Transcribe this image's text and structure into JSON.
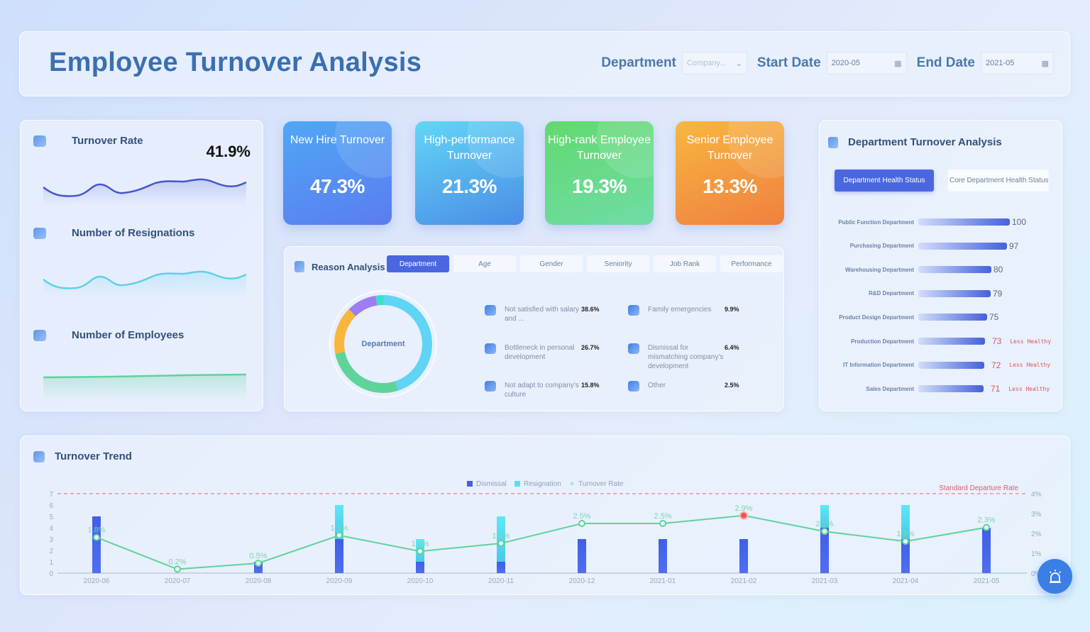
{
  "header": {
    "title": "Employee Turnover Analysis",
    "filters": {
      "department_label": "Department",
      "department_placeholder": "Company...",
      "start_label": "Start Date",
      "start_value": "2020-05",
      "end_label": "End Date",
      "end_value": "2021-05"
    }
  },
  "left_panel": {
    "turnover_rate": {
      "label": "Turnover Rate",
      "value": "41.9%"
    },
    "resignations": {
      "label": "Number of Resignations"
    },
    "employees": {
      "label": "Number of Employees"
    }
  },
  "kpis": [
    {
      "label": "New Hire Turnover",
      "value": "47.3%",
      "from": "#4fa8f5",
      "to": "#5b7cf0"
    },
    {
      "label": "High-performance Turnover",
      "value": "21.3%",
      "from": "#62d6f6",
      "to": "#4a8de6"
    },
    {
      "label": "High-rank Employee Turnover",
      "value": "19.3%",
      "from": "#62d96e",
      "to": "#6fdca6"
    },
    {
      "label": "Senior Employee Turnover",
      "value": "13.3%",
      "from": "#f7b73f",
      "to": "#f08040"
    }
  ],
  "reason": {
    "title": "Reason Analysis",
    "tabs": [
      "Department",
      "Age",
      "Gender",
      "Seniority",
      "Job Rank",
      "Performance"
    ],
    "active_tab": "Department",
    "donut_center": "Department",
    "items": [
      {
        "text": "Not satisfied with salary and ...",
        "value": "38.6%"
      },
      {
        "text": "Family emergencies",
        "value": "9.9%"
      },
      {
        "text": "Bottleneck in personal development",
        "value": "26.7%"
      },
      {
        "text": "Dismissal for mismatching company's development",
        "value": "6.4%"
      },
      {
        "text": "Not adapt to company's culture",
        "value": "15.8%"
      },
      {
        "text": "Other",
        "value": "2.5%"
      }
    ]
  },
  "department_analysis": {
    "title": "Department Turnover Analysis",
    "tabs": [
      "Department Health Status",
      "Core Department Health Status"
    ],
    "rows": [
      {
        "name": "Public Function Department",
        "value": 100,
        "warning": ""
      },
      {
        "name": "Purchasing Department",
        "value": 97,
        "warning": ""
      },
      {
        "name": "Warehousing Department",
        "value": 80,
        "warning": ""
      },
      {
        "name": "R&D Department",
        "value": 79,
        "warning": ""
      },
      {
        "name": "Product Design Department",
        "value": 75,
        "warning": ""
      },
      {
        "name": "Production Department",
        "value": 73,
        "warning": "Less Healthy"
      },
      {
        "name": "IT Information Department",
        "value": 72,
        "warning": "Less Healthy"
      },
      {
        "name": "Sales Department",
        "value": 71,
        "warning": "Less Healthy"
      }
    ]
  },
  "trend": {
    "title": "Turnover Trend",
    "standard_label": "Standard Departure Rate"
  },
  "chart_data": [
    {
      "type": "bar",
      "title": "Turnover Trend",
      "categories": [
        "2020-06",
        "2020-07",
        "2020-08",
        "2020-09",
        "2020-10",
        "2020-11",
        "2020-12",
        "2021-01",
        "2021-02",
        "2021-03",
        "2021-04",
        "2021-05"
      ],
      "series": [
        {
          "name": "Dismissal",
          "type": "bar",
          "stack": "a",
          "color": "#4360e3",
          "values": [
            5,
            0,
            1,
            3,
            1,
            1,
            3,
            3,
            3,
            4,
            3,
            4
          ]
        },
        {
          "name": "Resignation",
          "type": "bar",
          "stack": "a",
          "color": "#55e1f2",
          "values": [
            0,
            0,
            0,
            3,
            2,
            4,
            0,
            0,
            0,
            2,
            3,
            0
          ]
        },
        {
          "name": "Turnover Rate",
          "type": "line",
          "axis": "right",
          "color": "#5ed39a",
          "values": [
            1.8,
            0.2,
            0.5,
            1.9,
            1.1,
            1.5,
            2.5,
            2.5,
            2.9,
            2.1,
            1.6,
            2.3
          ],
          "labels": [
            "1.8%",
            "0.2%",
            "0.5%",
            "1.9%",
            "1.1%",
            "1.5%",
            "2.5%",
            "2.5%",
            "2.9%",
            "2.1%",
            "1.6%",
            "2.3%"
          ]
        }
      ],
      "highlight_index": 8,
      "y_left": {
        "min": 0,
        "max": 7,
        "ticks": [
          0,
          1,
          2,
          3,
          4,
          5,
          6,
          7
        ]
      },
      "y_right": {
        "min": 0,
        "max": 4,
        "ticks": [
          "0%",
          "1%",
          "2%",
          "3%",
          "4%"
        ]
      },
      "reference_line": {
        "label": "Standard Departure Rate",
        "value": 4,
        "axis": "right",
        "color": "#e06a7a"
      },
      "legend": [
        "Dismissal",
        "Resignation",
        "Turnover Rate"
      ],
      "legend_position": "top"
    },
    {
      "type": "bar",
      "title": "Department Health Status",
      "orientation": "horizontal",
      "categories": [
        "Public Function Department",
        "Purchasing Department",
        "Warehousing Department",
        "R&D Department",
        "Product Design Department",
        "Production Department",
        "IT Information Department",
        "Sales Department"
      ],
      "values": [
        100,
        97,
        80,
        79,
        75,
        73,
        72,
        71
      ]
    },
    {
      "type": "pie",
      "title": "Department",
      "categories": [
        "Not satisfied with salary and ...",
        "Bottleneck in personal development",
        "Not adapt to company's culture",
        "Family emergencies",
        "Dismissal for mismatching company's development",
        "Other"
      ],
      "values": [
        38.6,
        26.7,
        15.8,
        9.9,
        6.4,
        2.5
      ],
      "colors": [
        "#5fd4f4",
        "#5ed39a",
        "#f8b73a",
        "#9b7ff0",
        "#5fd4f4",
        "#38e0c8"
      ]
    }
  ]
}
